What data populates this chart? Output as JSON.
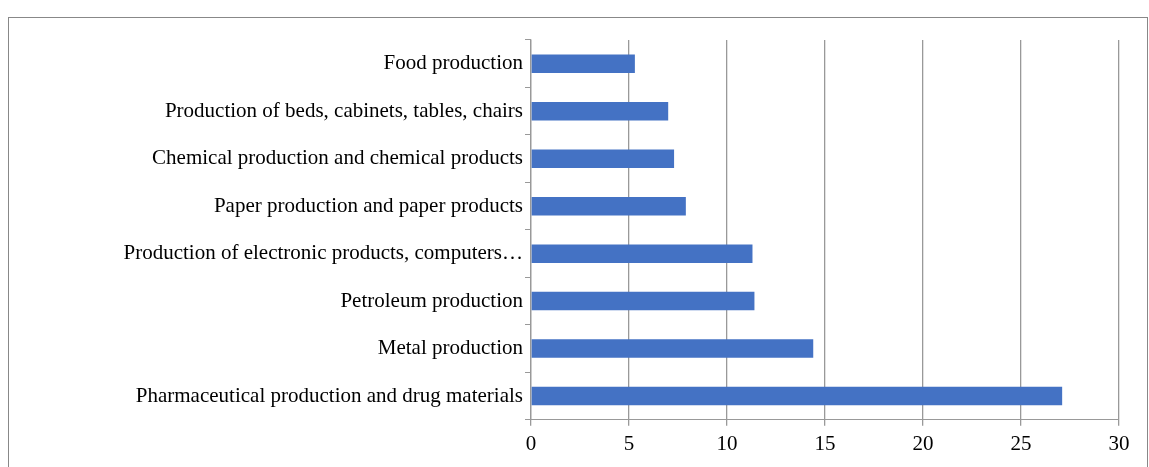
{
  "chart_data": {
    "type": "bar",
    "orientation": "horizontal",
    "categories": [
      "Food production",
      "Production of beds, cabinets, tables, chairs",
      "Chemical production and chemical products",
      "Paper production and paper products",
      "Production of electronic products, computers…",
      "Petroleum production",
      "Metal production",
      "Pharmaceutical production and drug materials"
    ],
    "values": [
      5.3,
      7.0,
      7.3,
      7.9,
      11.3,
      11.4,
      14.4,
      27.1
    ],
    "color": "#4472c4",
    "xlim": [
      0,
      30
    ],
    "xticks": [
      0,
      5,
      10,
      15,
      20,
      25,
      30
    ],
    "grid": "x",
    "legend": false
  }
}
